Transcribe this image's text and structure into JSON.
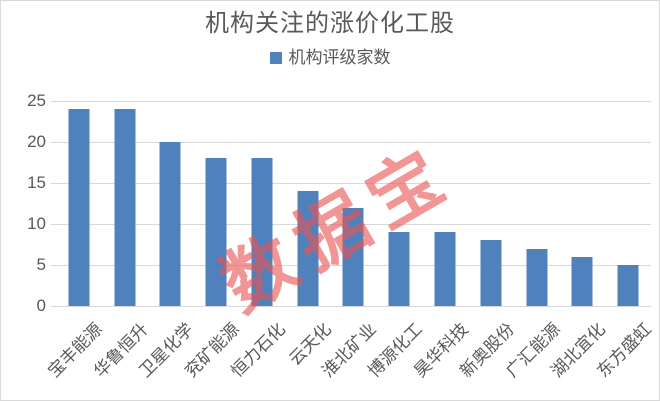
{
  "chart_data": {
    "type": "bar",
    "title": "机构关注的涨价化工股",
    "series_name": "机构评级家数",
    "categories": [
      "宝丰能源",
      "华鲁恒升",
      "卫星化学",
      "兖矿能源",
      "恒力石化",
      "云天化",
      "淮北矿业",
      "博源化工",
      "昊华科技",
      "新奥股份",
      "广汇能源",
      "湖北宜化",
      "东方盛虹"
    ],
    "values": [
      24,
      24,
      20,
      18,
      18,
      14,
      12,
      9,
      9,
      8,
      7,
      6,
      5
    ],
    "xlabel": "",
    "ylabel": "",
    "ylim": [
      0,
      25
    ],
    "yticks": [
      0,
      5,
      10,
      15,
      20,
      25
    ],
    "grid": true,
    "legend_position": "top",
    "bar_color": "#4f81bd",
    "grid_color": "#d9d9d9",
    "text_color": "#595959",
    "watermark_text": "数据宝",
    "watermark_color": "#e85454"
  }
}
